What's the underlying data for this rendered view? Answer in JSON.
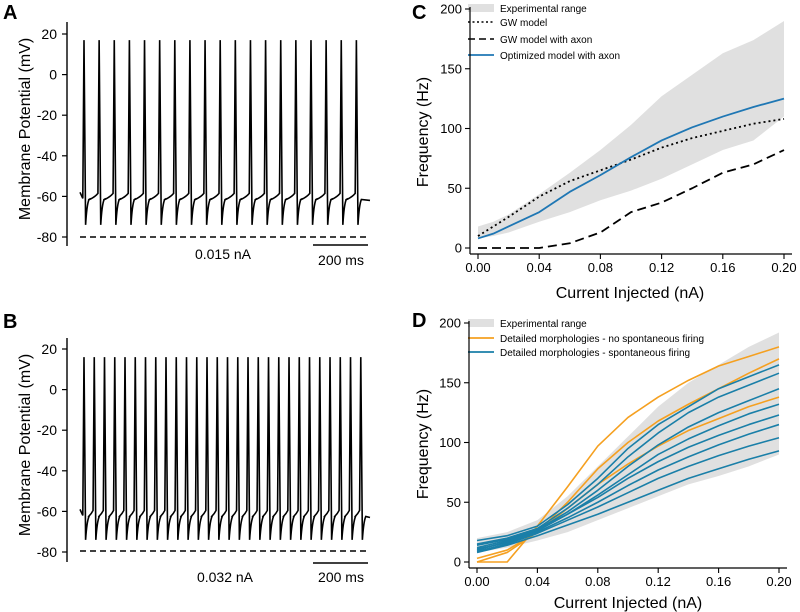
{
  "panels": {
    "A": {
      "label": "A",
      "ylabel": "Membrane Potential (mV)",
      "yticks": [
        "20",
        "0",
        "-20",
        "-40",
        "-60",
        "-80"
      ],
      "current_label": "0.015 nA",
      "scalebar_label": "200 ms"
    },
    "B": {
      "label": "B",
      "ylabel": "Membrane Potential (mV)",
      "yticks": [
        "20",
        "0",
        "-20",
        "-40",
        "-60",
        "-80"
      ],
      "current_label": "0.032 nA",
      "scalebar_label": "200 ms"
    },
    "C": {
      "label": "C",
      "xlabel": "Current Injected (nA)",
      "ylabel": "Frequency (Hz)",
      "xticks": [
        "0.00",
        "0.04",
        "0.08",
        "0.12",
        "0.16",
        "0.20"
      ],
      "yticks": [
        "0",
        "50",
        "100",
        "150",
        "200"
      ],
      "legend": [
        "Experimental range",
        "GW model",
        "GW model with axon",
        "Optimized model with axon"
      ]
    },
    "D": {
      "label": "D",
      "xlabel": "Current Injected (nA)",
      "ylabel": "Frequency (Hz)",
      "xticks": [
        "0.00",
        "0.04",
        "0.08",
        "0.12",
        "0.16",
        "0.20"
      ],
      "yticks": [
        "0",
        "50",
        "100",
        "150",
        "200"
      ],
      "legend": [
        "Experimental range",
        "Detailed morphologies - no spontaneous firing",
        "Detailed morphologies - spontaneous firing"
      ]
    }
  },
  "colors": {
    "blue": "#1f77b4",
    "orange": "#f5a020",
    "teal": "#1a7fa8",
    "band": "#e0e0e0",
    "black": "#000000"
  },
  "chart_data": [
    {
      "type": "line",
      "panel": "A",
      "title": "",
      "xlabel": "",
      "ylabel": "Membrane Potential (mV)",
      "ylim": [
        -85,
        25
      ],
      "spike_count": 19,
      "peak_mV": 17,
      "trough_mV": -74,
      "plateau_mV": -61,
      "baseline_mV": -79,
      "duration_ms": 1200,
      "scalebar_ms": 200,
      "current_nA": 0.015
    },
    {
      "type": "line",
      "panel": "B",
      "title": "",
      "xlabel": "",
      "ylabel": "Membrane Potential (mV)",
      "ylim": [
        -85,
        25
      ],
      "spike_count": 28,
      "peak_mV": 16,
      "trough_mV": -74,
      "plateau_mV": -62,
      "baseline_mV": -79,
      "duration_ms": 1200,
      "scalebar_ms": 200,
      "current_nA": 0.032
    },
    {
      "type": "line",
      "panel": "C",
      "xlabel": "Current Injected (nA)",
      "ylabel": "Frequency (Hz)",
      "xlim": [
        0,
        0.2
      ],
      "ylim": [
        0,
        200
      ],
      "x": [
        0,
        0.01,
        0.02,
        0.04,
        0.06,
        0.08,
        0.1,
        0.12,
        0.14,
        0.16,
        0.18,
        0.2
      ],
      "band_upper": [
        18,
        22,
        28,
        45,
        63,
        82,
        103,
        127,
        145,
        163,
        174,
        190
      ],
      "band_lower": [
        8,
        10,
        13,
        22,
        30,
        40,
        48,
        58,
        70,
        82,
        90,
        110
      ],
      "series": [
        {
          "name": "GW model",
          "style": "dotted",
          "values": [
            10,
            18,
            26,
            43,
            56,
            65,
            74,
            84,
            92,
            98,
            104,
            108
          ]
        },
        {
          "name": "GW model with axon",
          "style": "dashed",
          "values": [
            0,
            0,
            0,
            0,
            4,
            13,
            30,
            38,
            50,
            63,
            70,
            82
          ]
        },
        {
          "name": "Optimized model with axon",
          "style": "solid",
          "values": [
            8,
            12,
            18,
            30,
            47,
            61,
            76,
            90,
            101,
            110,
            118,
            125
          ]
        }
      ]
    },
    {
      "type": "line",
      "panel": "D",
      "xlabel": "Current Injected (nA)",
      "ylabel": "Frequency (Hz)",
      "xlim": [
        0,
        0.2
      ],
      "ylim": [
        0,
        200
      ],
      "x": [
        0,
        0.02,
        0.04,
        0.06,
        0.08,
        0.1,
        0.12,
        0.14,
        0.16,
        0.18,
        0.2
      ],
      "band_upper": [
        20,
        25,
        35,
        55,
        80,
        105,
        130,
        150,
        165,
        180,
        192
      ],
      "band_lower": [
        8,
        12,
        18,
        25,
        35,
        45,
        55,
        65,
        72,
        80,
        90
      ],
      "series": [
        {
          "name": "Detailed morphologies - no spontaneous firing",
          "color": "orange",
          "values": [
            0,
            0,
            30,
            63,
            97,
            121,
            138,
            152,
            164,
            172,
            180
          ]
        },
        {
          "name": "Detailed morphologies - no spontaneous firing",
          "color": "orange",
          "values": [
            0,
            8,
            25,
            50,
            78,
            100,
            118,
            132,
            145,
            158,
            170
          ]
        },
        {
          "name": "Detailed morphologies - no spontaneous firing",
          "color": "orange",
          "values": [
            3,
            10,
            25,
            45,
            65,
            82,
            97,
            110,
            120,
            130,
            138
          ]
        },
        {
          "name": "Detailed morphologies - spontaneous firing",
          "color": "teal",
          "values": [
            18,
            22,
            30,
            48,
            70,
            95,
            115,
            130,
            145,
            155,
            165
          ]
        },
        {
          "name": "Detailed morphologies - spontaneous firing",
          "color": "teal",
          "values": [
            15,
            20,
            28,
            45,
            65,
            88,
            108,
            125,
            138,
            148,
            158
          ]
        },
        {
          "name": "Detailed morphologies - spontaneous firing",
          "color": "teal",
          "values": [
            12,
            18,
            27,
            42,
            60,
            80,
            98,
            113,
            125,
            135,
            145
          ]
        },
        {
          "name": "Detailed morphologies - spontaneous firing",
          "color": "teal",
          "values": [
            10,
            17,
            26,
            40,
            56,
            73,
            90,
            103,
            114,
            124,
            132
          ]
        },
        {
          "name": "Detailed morphologies - spontaneous firing",
          "color": "teal",
          "values": [
            14,
            19,
            27,
            40,
            54,
            70,
            84,
            96,
            106,
            115,
            123
          ]
        },
        {
          "name": "Detailed morphologies - spontaneous firing",
          "color": "teal",
          "values": [
            11,
            16,
            25,
            37,
            50,
            64,
            77,
            88,
            98,
            107,
            115
          ]
        },
        {
          "name": "Detailed morphologies - spontaneous firing",
          "color": "teal",
          "values": [
            9,
            15,
            24,
            35,
            46,
            58,
            70,
            80,
            89,
            97,
            104
          ]
        },
        {
          "name": "Detailed morphologies - spontaneous firing",
          "color": "teal",
          "values": [
            8,
            14,
            22,
            31,
            40,
            50,
            60,
            70,
            78,
            86,
            93
          ]
        }
      ]
    }
  ]
}
